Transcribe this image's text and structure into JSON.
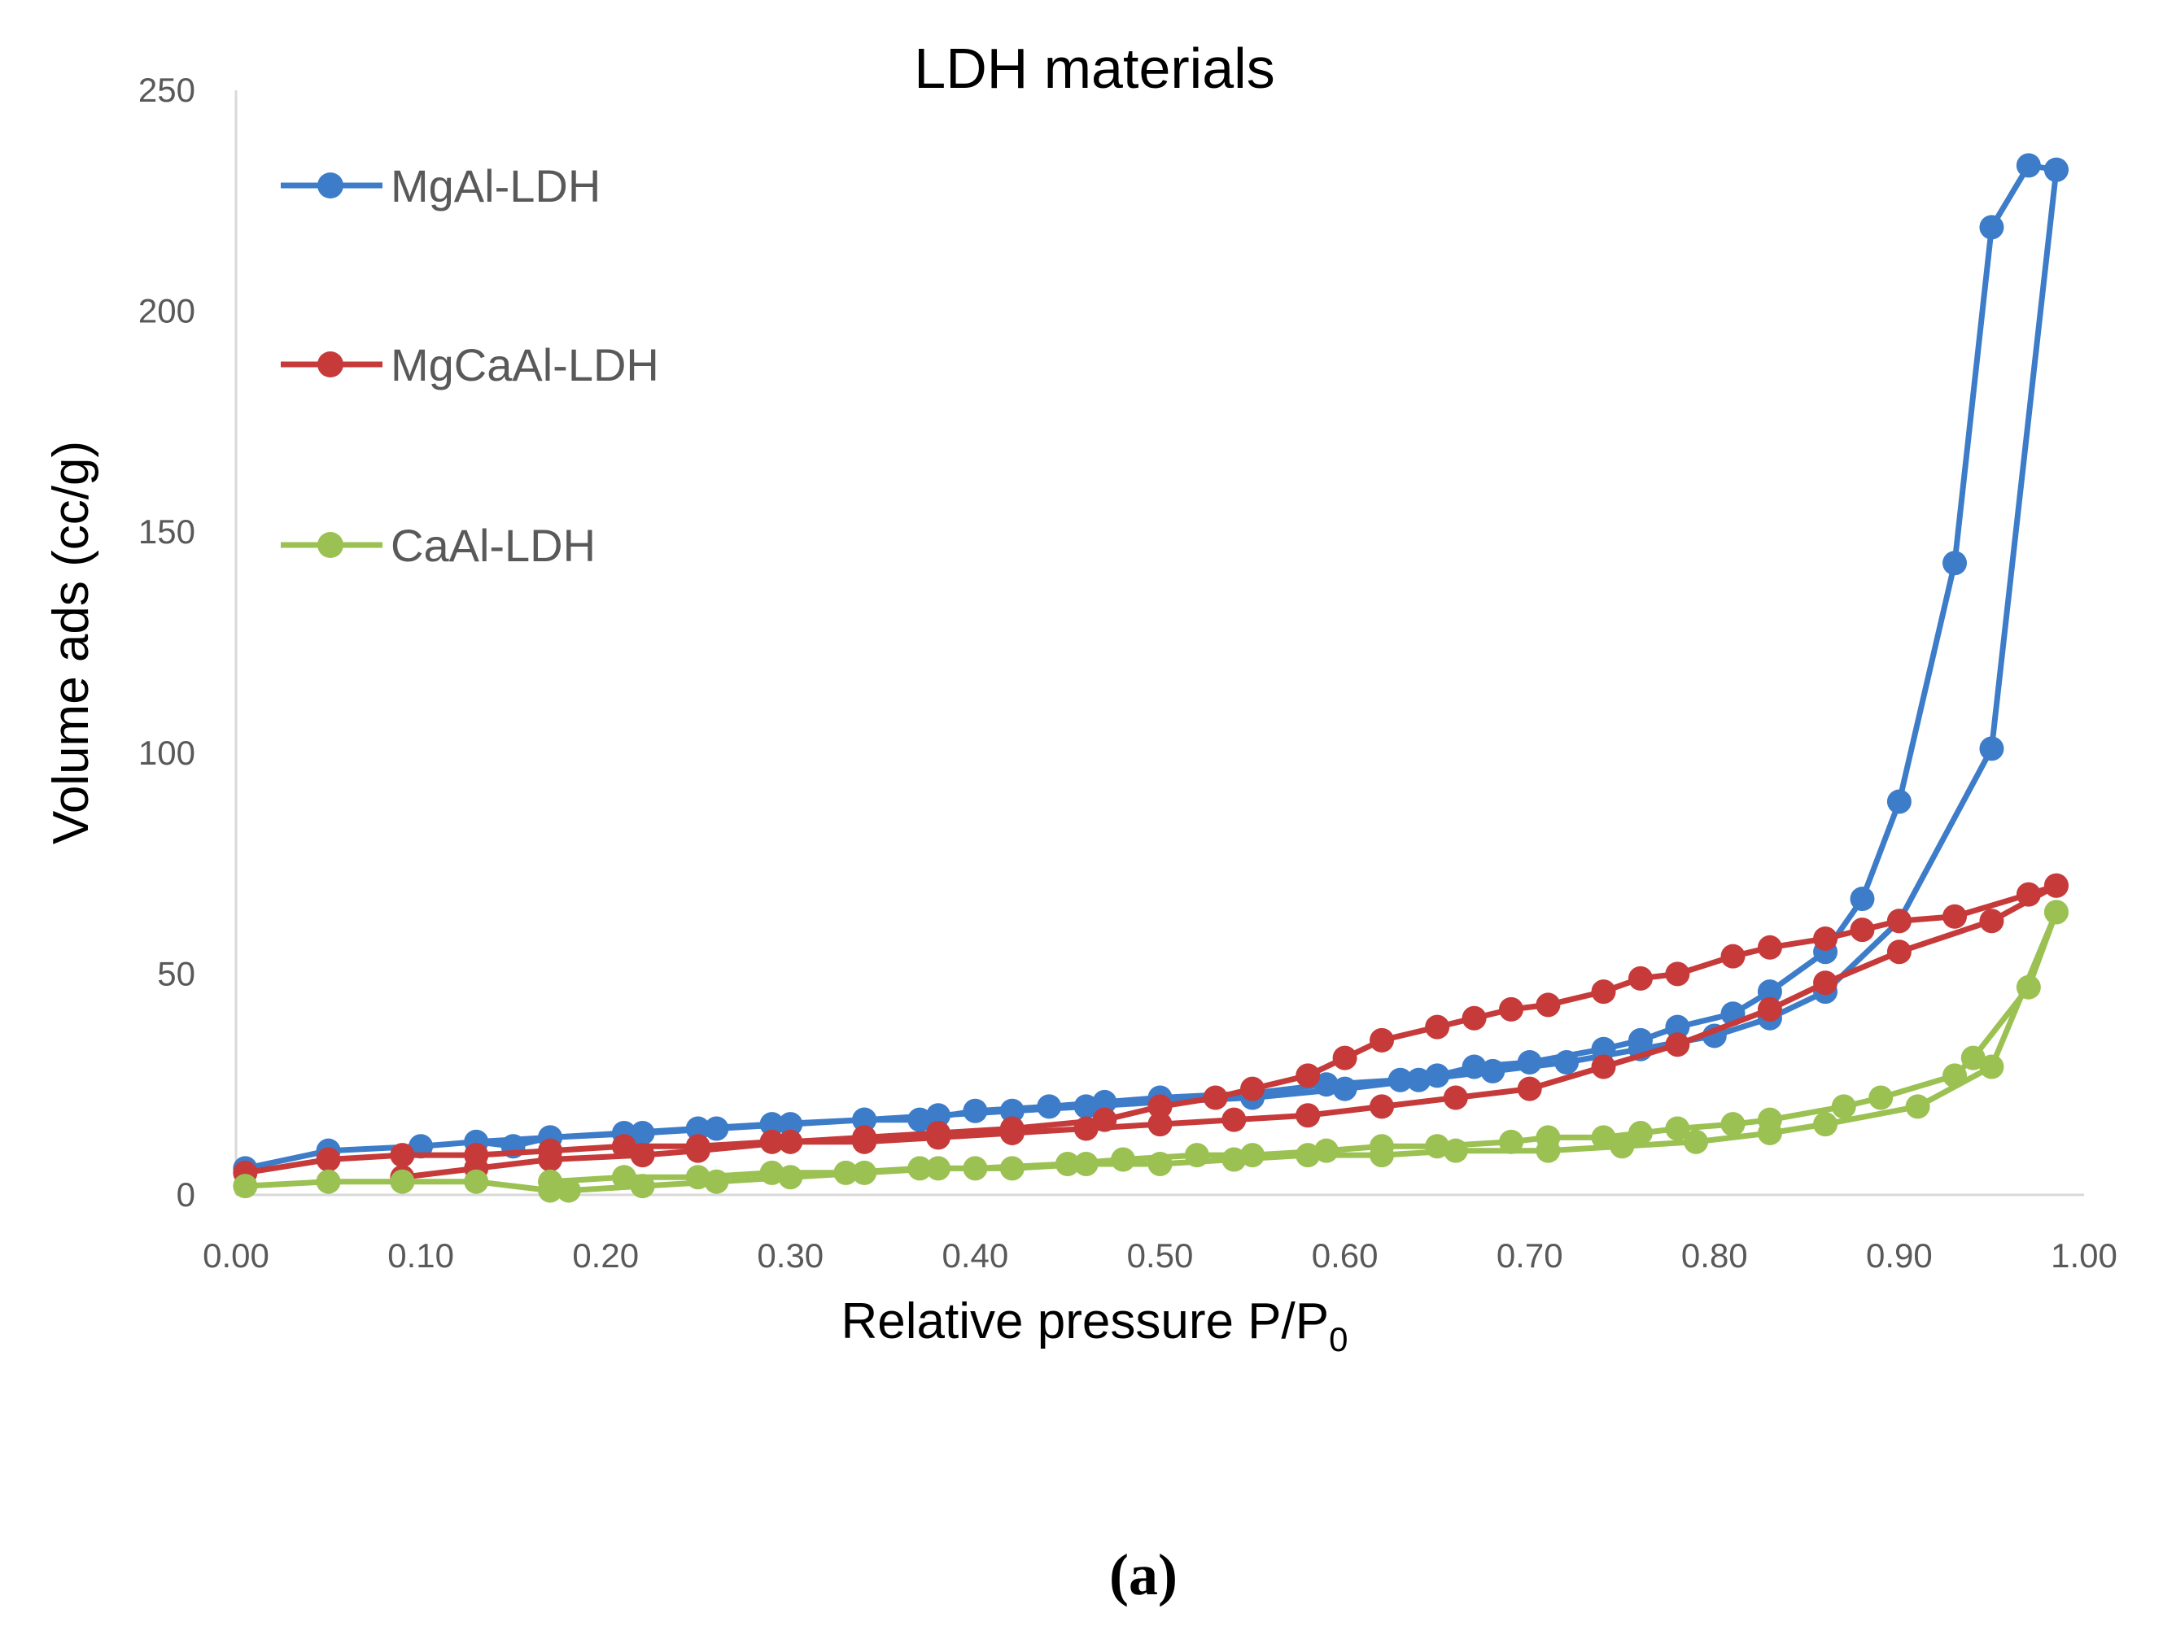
{
  "caption": "(a)",
  "chart_data": {
    "type": "line",
    "title": "LDH materials",
    "xlabel": "Relative pressure P/P",
    "xlabel_sub": "0",
    "ylabel": "Volume ads (cc/g)",
    "xlim": [
      0,
      1.0
    ],
    "ylim": [
      0,
      250
    ],
    "xticks": [
      "0.00",
      "0.10",
      "0.20",
      "0.30",
      "0.40",
      "0.50",
      "0.60",
      "0.70",
      "0.80",
      "0.90",
      "1.00"
    ],
    "yticks": [
      "0",
      "50",
      "100",
      "150",
      "200",
      "250"
    ],
    "grid": false,
    "legend_position": "top-left",
    "series": [
      {
        "name": "MgAl-LDH",
        "color": "#3d7cc9",
        "adsorption": {
          "x": [
            0.005,
            0.05,
            0.1,
            0.13,
            0.17,
            0.21,
            0.25,
            0.29,
            0.34,
            0.38,
            0.42,
            0.46,
            0.5,
            0.55,
            0.6,
            0.64,
            0.68,
            0.72,
            0.76,
            0.8,
            0.83,
            0.86,
            0.9,
            0.95,
            0.985
          ],
          "y": [
            6,
            10,
            11,
            12,
            13,
            14,
            15,
            16,
            17,
            18,
            19,
            20,
            21,
            22,
            24,
            26,
            28,
            30,
            33,
            36,
            40,
            46,
            62,
            101,
            232
          ]
        },
        "desorption": {
          "x": [
            0.985,
            0.97,
            0.95,
            0.93,
            0.9,
            0.88,
            0.86,
            0.83,
            0.81,
            0.78,
            0.76,
            0.74,
            0.7,
            0.67,
            0.65,
            0.63,
            0.59,
            0.55,
            0.5,
            0.47,
            0.44,
            0.4,
            0.37,
            0.34,
            0.3,
            0.26,
            0.22,
            0.17,
            0.15,
            0.13
          ],
          "y": [
            232,
            233,
            219,
            143,
            89,
            67,
            55,
            46,
            41,
            38,
            35,
            33,
            30,
            29,
            27,
            26,
            25,
            23,
            22,
            21,
            20,
            19,
            17,
            17,
            16,
            15,
            14,
            13,
            11,
            12
          ]
        }
      },
      {
        "name": "MgCaAl-LDH",
        "color": "#c63a3a",
        "adsorption": {
          "x": [
            0.005,
            0.05,
            0.09,
            0.13,
            0.17,
            0.21,
            0.25,
            0.29,
            0.34,
            0.38,
            0.42,
            0.46,
            0.5,
            0.54,
            0.58,
            0.62,
            0.66,
            0.7,
            0.74,
            0.78,
            0.83,
            0.86,
            0.9,
            0.95,
            0.985
          ],
          "y": [
            5,
            8,
            9,
            9,
            10,
            11,
            11,
            12,
            12,
            13,
            14,
            15,
            16,
            17,
            18,
            20,
            22,
            24,
            29,
            34,
            42,
            48,
            55,
            62,
            70
          ]
        },
        "desorption": {
          "x": [
            0.985,
            0.97,
            0.93,
            0.9,
            0.88,
            0.86,
            0.83,
            0.81,
            0.78,
            0.76,
            0.74,
            0.71,
            0.69,
            0.67,
            0.65,
            0.62,
            0.6,
            0.58,
            0.55,
            0.53,
            0.5,
            0.47,
            0.42,
            0.38,
            0.34,
            0.3,
            0.25,
            0.22,
            0.17,
            0.13,
            0.09
          ],
          "y": [
            70,
            68,
            63,
            62,
            60,
            58,
            56,
            54,
            50,
            49,
            46,
            43,
            42,
            40,
            38,
            35,
            31,
            27,
            24,
            22,
            20,
            17,
            15,
            14,
            13,
            12,
            10,
            9,
            8,
            6,
            4
          ]
        }
      },
      {
        "name": "CaAl-LDH",
        "color": "#9bc152",
        "adsorption": {
          "x": [
            0.005,
            0.05,
            0.09,
            0.13,
            0.17,
            0.18,
            0.22,
            0.26,
            0.3,
            0.34,
            0.38,
            0.42,
            0.46,
            0.5,
            0.54,
            0.58,
            0.62,
            0.66,
            0.71,
            0.75,
            0.79,
            0.83,
            0.86,
            0.91,
            0.95,
            0.985
          ],
          "y": [
            2,
            3,
            3,
            3,
            1,
            1,
            2,
            3,
            4,
            5,
            6,
            6,
            7,
            7,
            8,
            9,
            9,
            10,
            10,
            11,
            12,
            14,
            16,
            20,
            29,
            64
          ]
        },
        "desorption": {
          "x": [
            0.985,
            0.97,
            0.94,
            0.93,
            0.89,
            0.87,
            0.83,
            0.81,
            0.78,
            0.76,
            0.74,
            0.71,
            0.69,
            0.65,
            0.62,
            0.59,
            0.55,
            0.52,
            0.48,
            0.45,
            0.4,
            0.37,
            0.33,
            0.29,
            0.25,
            0.21,
            0.17
          ],
          "y": [
            64,
            47,
            31,
            27,
            22,
            20,
            17,
            16,
            15,
            14,
            13,
            13,
            12,
            11,
            11,
            10,
            9,
            9,
            8,
            7,
            6,
            6,
            5,
            5,
            4,
            4,
            3
          ]
        }
      }
    ]
  }
}
